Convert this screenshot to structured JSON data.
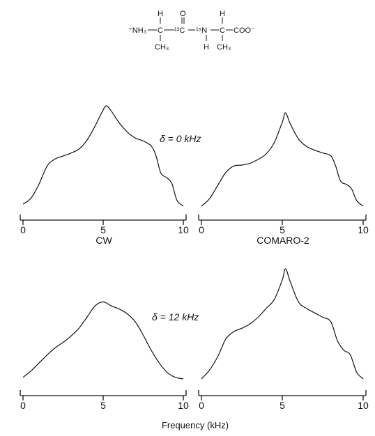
{
  "molecule": {
    "nh3": "⁺NH₃",
    "c_alpha1": "C",
    "h1": "H",
    "ch3_1": "CH₃",
    "o": "O",
    "carbonyl": "¹³C",
    "n15": "¹⁵N",
    "nh": "H",
    "c_alpha2": "C",
    "h2": "H",
    "ch3_2": "CH₃",
    "coo": "COO⁻"
  },
  "figure": {
    "delta_top": "δ = 0 kHz",
    "delta_bottom": "δ = 12 kHz",
    "xlabel": "Frequency (kHz)",
    "caption_left": "CW",
    "caption_right": "COMARO-2"
  },
  "chart_data": [
    {
      "type": "line",
      "panel": "top-left",
      "caption": "CW",
      "condition": "δ = 0 kHz",
      "xlim": [
        0,
        10
      ],
      "xticks": [
        0,
        5,
        10
      ],
      "xlabel": "",
      "x": [
        0,
        0.5,
        1,
        1.5,
        2,
        2.5,
        3,
        3.5,
        4,
        4.5,
        5,
        5.2,
        5.5,
        6,
        6.5,
        7,
        7.5,
        8,
        8.3,
        8.6,
        9,
        9.3,
        9.6,
        10
      ],
      "y": [
        0.02,
        0.08,
        0.22,
        0.4,
        0.47,
        0.5,
        0.53,
        0.57,
        0.66,
        0.8,
        0.96,
        1.0,
        0.95,
        0.83,
        0.74,
        0.68,
        0.65,
        0.6,
        0.5,
        0.33,
        0.28,
        0.22,
        0.06,
        0.0
      ]
    },
    {
      "type": "line",
      "panel": "top-right",
      "caption": "COMARO-2",
      "condition": "δ = 0 kHz",
      "xlim": [
        0,
        10
      ],
      "xticks": [
        0,
        5,
        10
      ],
      "xlabel": "",
      "x": [
        0,
        0.5,
        1,
        1.5,
        2,
        2.5,
        3,
        3.5,
        4,
        4.5,
        5,
        5.2,
        5.5,
        6,
        6.5,
        7,
        7.5,
        8,
        8.3,
        8.6,
        9,
        9.3,
        9.6,
        10
      ],
      "y": [
        0.0,
        0.08,
        0.22,
        0.36,
        0.43,
        0.44,
        0.46,
        0.5,
        0.56,
        0.68,
        0.9,
        1.0,
        0.88,
        0.72,
        0.64,
        0.6,
        0.57,
        0.54,
        0.43,
        0.27,
        0.23,
        0.18,
        0.06,
        0.0
      ]
    },
    {
      "type": "line",
      "panel": "bottom-left",
      "caption": "",
      "condition": "δ = 12 kHz",
      "xlim": [
        0,
        10
      ],
      "xticks": [
        0,
        5,
        10
      ],
      "xlabel": "Frequency (kHz)",
      "x": [
        0,
        0.5,
        1,
        1.5,
        2,
        2.5,
        3,
        3.5,
        4,
        4.5,
        5,
        5.5,
        6,
        6.5,
        7,
        7.5,
        8,
        8.5,
        9,
        9.5,
        10
      ],
      "y": [
        0.02,
        0.1,
        0.2,
        0.3,
        0.39,
        0.46,
        0.54,
        0.64,
        0.78,
        0.92,
        0.97,
        0.92,
        0.88,
        0.82,
        0.72,
        0.55,
        0.36,
        0.2,
        0.08,
        0.02,
        0.0
      ]
    },
    {
      "type": "line",
      "panel": "bottom-right",
      "caption": "",
      "condition": "δ = 12 kHz",
      "xlim": [
        0,
        10
      ],
      "xticks": [
        0,
        5,
        10
      ],
      "xlabel": "Frequency (kHz)",
      "x": [
        0,
        0.5,
        1,
        1.5,
        2,
        2.5,
        3,
        3.5,
        4,
        4.5,
        5,
        5.2,
        5.5,
        6,
        6.5,
        7,
        7.5,
        8,
        8.4,
        8.8,
        9.2,
        9.6,
        10
      ],
      "y": [
        0.0,
        0.08,
        0.2,
        0.36,
        0.43,
        0.46,
        0.5,
        0.56,
        0.64,
        0.72,
        0.9,
        1.0,
        0.88,
        0.7,
        0.64,
        0.6,
        0.56,
        0.52,
        0.35,
        0.26,
        0.22,
        0.06,
        0.0
      ]
    }
  ]
}
